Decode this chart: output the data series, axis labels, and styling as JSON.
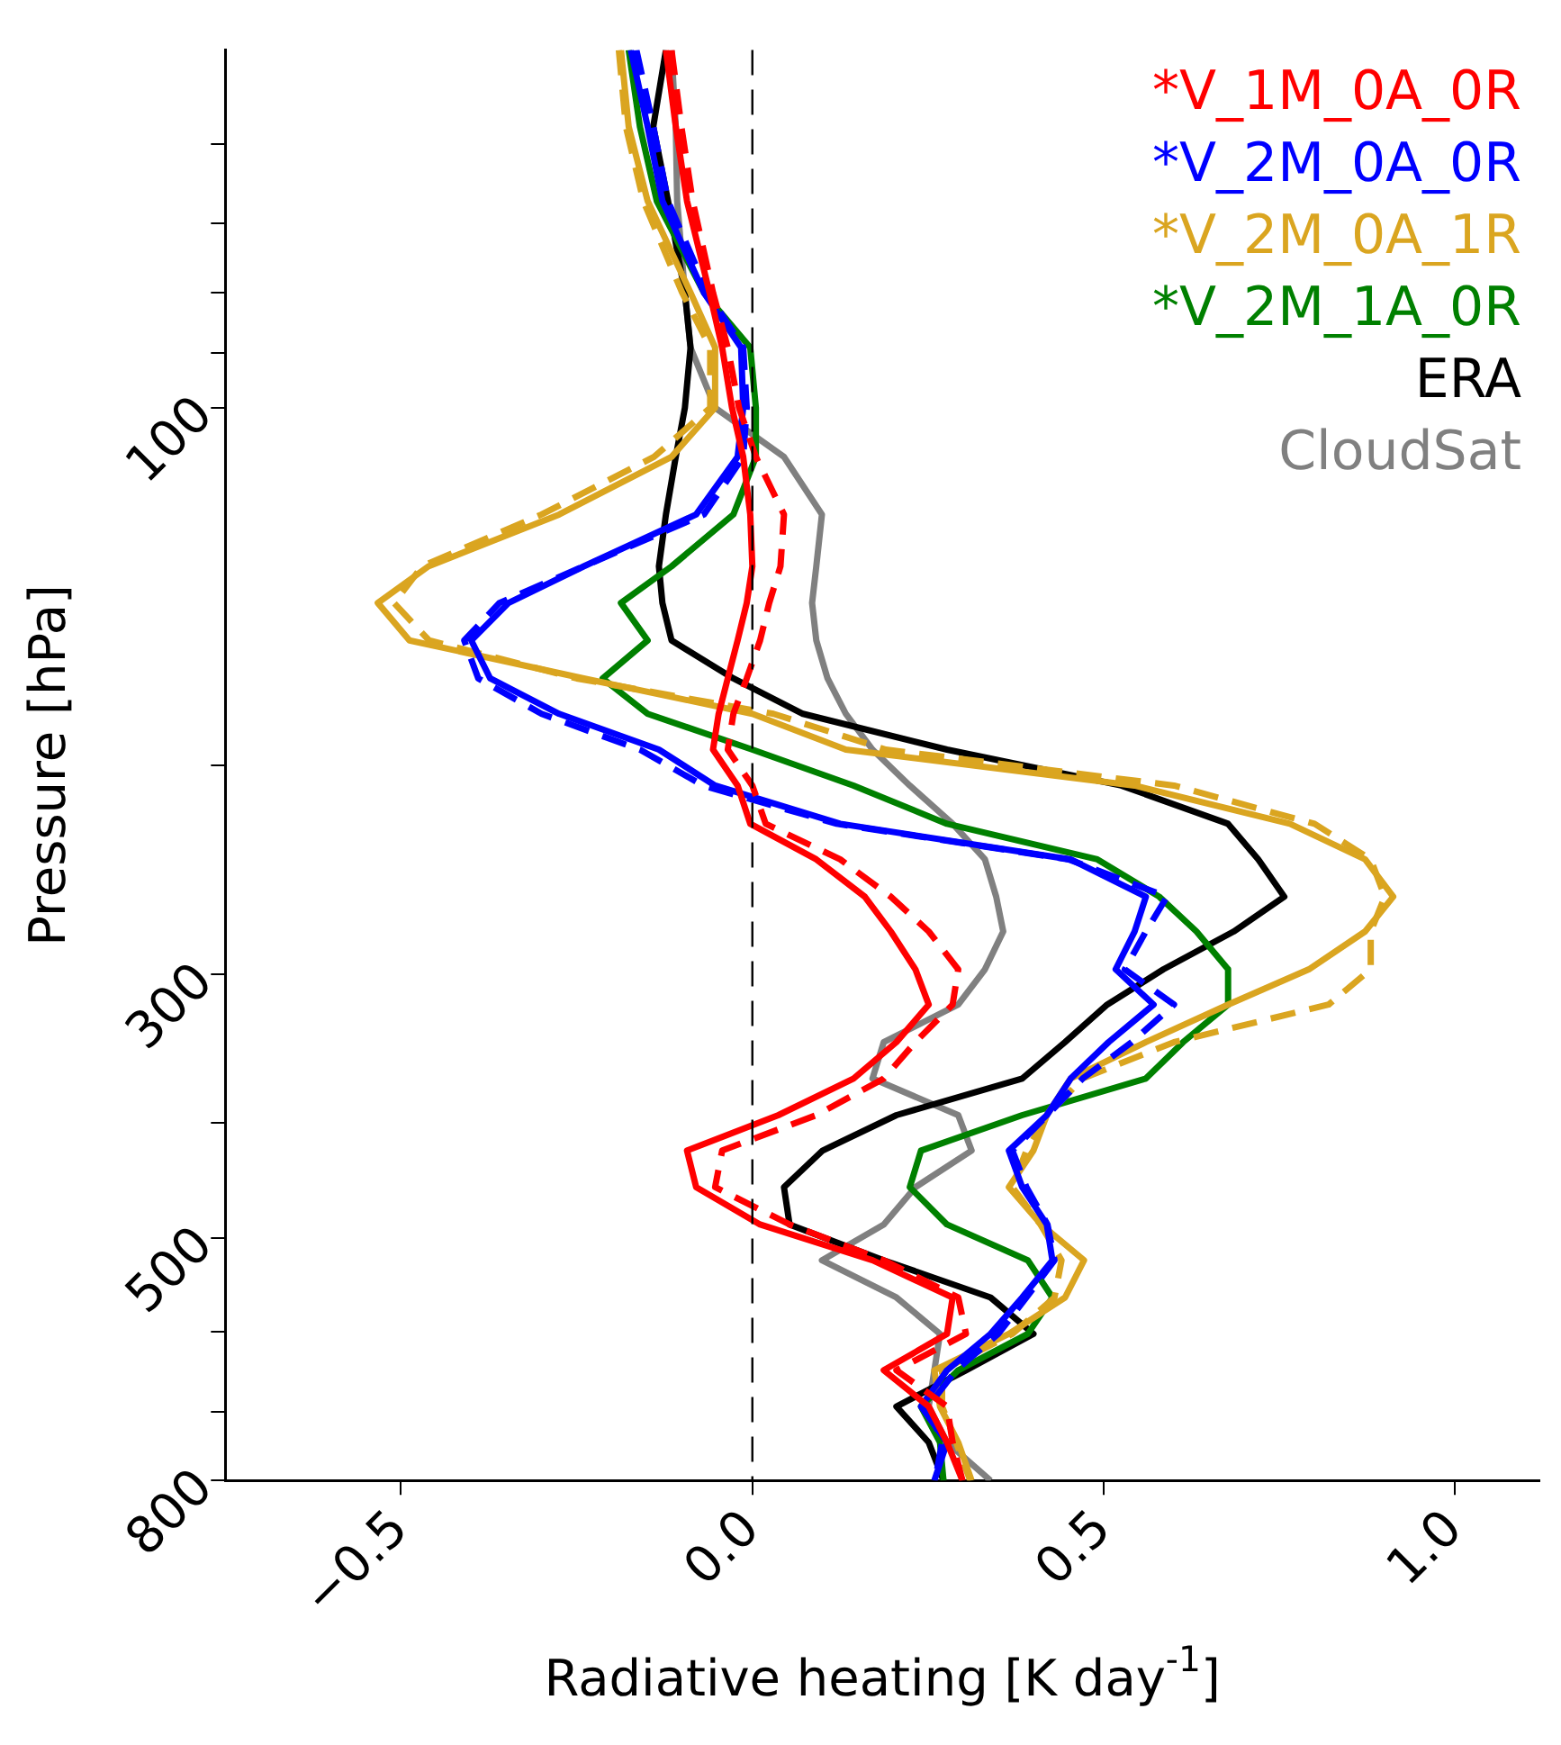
{
  "chart_data": {
    "type": "line",
    "xlabel": "Radiative heating [K day$^{-1}$]",
    "ylabel": "Pressure [hPa]",
    "xlim": [
      -0.75,
      1.12
    ],
    "xticks": [
      {
        "value": -0.5,
        "label": "−0.5"
      },
      {
        "value": 0,
        "label": "0.0"
      },
      {
        "value": 0.5,
        "label": "0.5"
      },
      {
        "value": 1,
        "label": "1.0"
      }
    ],
    "ylim": [
      800,
      50
    ],
    "yticks": [
      {
        "value": 60,
        "label": null
      },
      {
        "value": 70,
        "label": null
      },
      {
        "value": 80,
        "label": null
      },
      {
        "value": 90,
        "label": null
      },
      100,
      {
        "value": 200,
        "label": null
      },
      300,
      {
        "value": 400,
        "label": null
      },
      500,
      {
        "value": 600,
        "label": null
      },
      {
        "value": 700,
        "label": null
      },
      800
    ],
    "log": "y",
    "grid": false,
    "legend": "top right",
    "marker": "none",
    "ref_lines": [
      {
        "axis": "x",
        "value": 0,
        "color": "#000000",
        "line_style": "dashed"
      }
    ],
    "series": [
      {
        "name": "*V_1M_0A_0R",
        "color": "#ff0000",
        "line_style": "solid",
        "x": [
          -0.123,
          -0.109,
          -0.093,
          -0.061,
          -0.043,
          -0.029,
          -0.013,
          -0.003,
          0.0,
          -0.008,
          -0.021,
          -0.035,
          -0.048,
          -0.056,
          -0.021,
          -0.003,
          0.091,
          0.16,
          0.197,
          0.232,
          0.251,
          0.205,
          0.144,
          0.037,
          -0.093,
          -0.08,
          0.011,
          0.171,
          0.285,
          0.277,
          0.187,
          0.251,
          0.277,
          0.299
        ],
        "values": [
          50,
          58,
          67,
          80,
          89,
          100,
          110,
          123,
          136,
          146,
          157,
          169,
          181,
          194,
          208,
          224,
          240,
          258,
          276,
          297,
          318,
          342,
          367,
          394,
          422,
          453,
          487,
          522,
          561,
          602,
          646,
          693,
          743,
          800
        ]
      },
      {
        "color": "#ff0000",
        "line_style": "dashed",
        "x": [
          -0.115,
          -0.101,
          -0.085,
          -0.056,
          -0.035,
          -0.019,
          0.005,
          0.045,
          0.04,
          0.024,
          0.011,
          -0.008,
          -0.027,
          -0.035,
          0.0,
          0.019,
          0.125,
          0.197,
          0.251,
          0.293,
          0.285,
          0.232,
          0.187,
          0.091,
          -0.043,
          -0.053,
          0.053,
          0.187,
          0.293,
          0.304,
          0.205,
          0.277,
          0.285,
          0.299
        ],
        "values": [
          50,
          58,
          67,
          80,
          89,
          100,
          110,
          123,
          136,
          146,
          157,
          169,
          181,
          194,
          208,
          224,
          240,
          258,
          276,
          297,
          318,
          342,
          367,
          394,
          422,
          453,
          487,
          522,
          561,
          602,
          646,
          693,
          743,
          800
        ]
      },
      {
        "name": "*V_2M_0A_0R",
        "color": "#0000ff",
        "line_style": "solid",
        "x": [
          -0.173,
          -0.149,
          -0.128,
          -0.069,
          -0.016,
          -0.013,
          -0.021,
          -0.08,
          -0.24,
          -0.347,
          -0.4,
          -0.373,
          -0.275,
          -0.133,
          -0.053,
          0.125,
          0.453,
          0.56,
          0.544,
          0.517,
          0.571,
          0.507,
          0.453,
          0.419,
          0.365,
          0.384,
          0.419,
          0.427,
          0.384,
          0.339,
          0.277,
          0.24,
          0.277,
          0.259
        ],
        "values": [
          50,
          58,
          67,
          80,
          89,
          100,
          110,
          123,
          136,
          146,
          157,
          169,
          181,
          194,
          208,
          224,
          240,
          258,
          276,
          297,
          318,
          342,
          367,
          394,
          422,
          453,
          487,
          522,
          561,
          602,
          646,
          693,
          743,
          800
        ]
      },
      {
        "color": "#0000ff",
        "line_style": "dashed",
        "x": [
          -0.165,
          -0.141,
          -0.12,
          -0.064,
          -0.013,
          -0.008,
          -0.013,
          -0.069,
          -0.24,
          -0.36,
          -0.41,
          -0.39,
          -0.3,
          -0.16,
          -0.07,
          0.12,
          0.45,
          0.59,
          0.56,
          0.53,
          0.6,
          0.54,
          0.47,
          0.42,
          0.37,
          0.39,
          0.42,
          0.43,
          0.39,
          0.35,
          0.29,
          0.25,
          0.27,
          0.26
        ],
        "values": [
          50,
          58,
          67,
          80,
          89,
          100,
          110,
          123,
          136,
          146,
          157,
          169,
          181,
          194,
          208,
          224,
          240,
          258,
          276,
          297,
          318,
          342,
          367,
          394,
          422,
          453,
          487,
          522,
          561,
          602,
          646,
          693,
          743,
          800
        ]
      },
      {
        "name": "*V_2M_0A_1R",
        "color": "#daa520",
        "line_style": "solid",
        "x": [
          -0.187,
          -0.176,
          -0.149,
          -0.088,
          -0.053,
          -0.053,
          -0.115,
          -0.275,
          -0.461,
          -0.533,
          -0.488,
          -0.24,
          0.0,
          0.133,
          0.544,
          0.765,
          0.872,
          0.912,
          0.872,
          0.792,
          0.677,
          0.56,
          0.453,
          0.419,
          0.4,
          0.365,
          0.411,
          0.472,
          0.445,
          0.365,
          0.259,
          0.267,
          0.293,
          0.312
        ],
        "values": [
          50,
          58,
          67,
          80,
          89,
          100,
          110,
          123,
          136,
          146,
          157,
          169,
          181,
          194,
          208,
          224,
          240,
          258,
          276,
          297,
          318,
          342,
          367,
          394,
          422,
          453,
          487,
          522,
          561,
          602,
          646,
          693,
          743,
          800
        ]
      },
      {
        "color": "#daa520",
        "line_style": "dashed",
        "x": [
          -0.19,
          -0.18,
          -0.155,
          -0.1,
          -0.06,
          -0.06,
          -0.14,
          -0.3,
          -0.47,
          -0.51,
          -0.46,
          -0.25,
          0.03,
          0.19,
          0.6,
          0.8,
          0.88,
          0.9,
          0.88,
          0.88,
          0.82,
          0.6,
          0.47,
          0.42,
          0.39,
          0.37,
          0.41,
          0.44,
          0.43,
          0.37,
          0.27,
          0.27,
          0.29,
          0.31
        ],
        "values": [
          50,
          58,
          67,
          80,
          89,
          100,
          110,
          123,
          136,
          146,
          157,
          169,
          181,
          194,
          208,
          224,
          240,
          258,
          276,
          297,
          318,
          342,
          367,
          394,
          422,
          453,
          487,
          522,
          561,
          602,
          646,
          693,
          743,
          800
        ]
      },
      {
        "name": "*V_2M_1A_0R",
        "color": "#008000",
        "line_style": "solid",
        "x": [
          -0.176,
          -0.16,
          -0.136,
          -0.069,
          -0.003,
          0.005,
          0.005,
          -0.027,
          -0.115,
          -0.187,
          -0.149,
          -0.213,
          -0.149,
          0.0,
          0.144,
          0.277,
          0.491,
          0.579,
          0.632,
          0.677,
          0.677,
          0.613,
          0.56,
          0.384,
          0.24,
          0.224,
          0.277,
          0.392,
          0.427,
          0.392,
          0.293,
          0.24,
          0.267,
          0.272
        ],
        "values": [
          50,
          58,
          67,
          80,
          89,
          100,
          110,
          123,
          136,
          146,
          157,
          169,
          181,
          194,
          208,
          224,
          240,
          258,
          276,
          297,
          318,
          342,
          367,
          394,
          422,
          453,
          487,
          522,
          561,
          602,
          646,
          693,
          743,
          800
        ]
      },
      {
        "name": "ERA",
        "color": "#000000",
        "line_style": "solid",
        "x": [
          -0.123,
          -0.141,
          -0.12,
          -0.096,
          -0.088,
          -0.096,
          -0.109,
          -0.123,
          -0.133,
          -0.128,
          -0.115,
          -0.027,
          0.072,
          0.277,
          0.525,
          0.677,
          0.72,
          0.757,
          0.685,
          0.585,
          0.505,
          0.445,
          0.384,
          0.205,
          0.1,
          0.045,
          0.053,
          0.187,
          0.339,
          0.4,
          0.304,
          0.205,
          0.251,
          0.272
        ],
        "values": [
          50,
          58,
          67,
          80,
          89,
          100,
          110,
          123,
          136,
          146,
          157,
          169,
          181,
          194,
          208,
          224,
          240,
          258,
          276,
          297,
          318,
          342,
          367,
          394,
          422,
          453,
          487,
          522,
          561,
          602,
          646,
          693,
          743,
          800
        ]
      },
      {
        "name": "CloudSat",
        "color": "#808080",
        "line_style": "solid",
        "x": [
          -0.115,
          -0.109,
          -0.107,
          -0.096,
          -0.088,
          -0.053,
          0.045,
          0.099,
          0.091,
          0.085,
          0.091,
          0.107,
          0.133,
          0.171,
          0.224,
          0.285,
          0.331,
          0.347,
          0.357,
          0.331,
          0.293,
          0.187,
          0.171,
          0.293,
          0.312,
          0.232,
          0.187,
          0.099,
          0.205,
          0.267,
          0.259,
          0.251,
          0.277,
          0.339
        ],
        "values": [
          50,
          58,
          67,
          80,
          89,
          100,
          110,
          123,
          136,
          146,
          157,
          169,
          181,
          194,
          208,
          224,
          240,
          258,
          276,
          297,
          318,
          342,
          367,
          394,
          422,
          453,
          487,
          522,
          561,
          602,
          646,
          693,
          743,
          800
        ]
      }
    ]
  }
}
